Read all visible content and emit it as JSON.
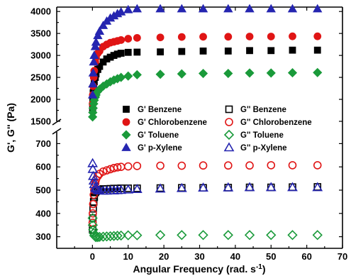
{
  "chart_data": {
    "type": "scatter",
    "xlabel": "Angular Frequency (rad. s",
    "xlabel_superscript": "-1",
    "xlabel_suffix": ")",
    "ylabel": "G', G'' (Pa)",
    "xlim": [
      -10,
      70
    ],
    "x_ticks": [
      "0",
      "10",
      "20",
      "30",
      "40",
      "50",
      "60",
      "70"
    ],
    "y_break": true,
    "upper_panel": {
      "ylim": [
        1500,
        4100
      ],
      "y_ticks": [
        "1500",
        "2000",
        "2500",
        "3000",
        "3500",
        "4000"
      ]
    },
    "lower_panel": {
      "ylim": [
        250,
        750
      ],
      "y_ticks": [
        "300",
        "400",
        "500",
        "600",
        "700"
      ]
    },
    "legend_columns": 2,
    "series": [
      {
        "name": "G' Benzene",
        "color": "#000000",
        "marker": "square",
        "filled": true,
        "panel": "upper",
        "x": [
          0.05,
          0.1,
          0.2,
          0.35,
          0.5,
          0.8,
          1,
          1.5,
          2,
          3,
          4,
          5,
          6,
          7,
          8,
          10,
          12.5,
          19,
          25,
          31,
          38,
          44,
          50,
          56,
          63
        ],
        "y": [
          1800,
          1950,
          2150,
          2300,
          2400,
          2500,
          2580,
          2680,
          2750,
          2850,
          2920,
          2960,
          3000,
          3030,
          3050,
          3070,
          3075,
          3080,
          3090,
          3100,
          3100,
          3110,
          3110,
          3120,
          3120
        ]
      },
      {
        "name": "G' Chlorobenzene",
        "color": "#e01515",
        "marker": "circle",
        "filled": true,
        "panel": "upper",
        "x": [
          0.05,
          0.1,
          0.2,
          0.35,
          0.5,
          0.8,
          1,
          1.5,
          2,
          3,
          4,
          5,
          6,
          7,
          8,
          10,
          12.5,
          19,
          25,
          31,
          38,
          44,
          50,
          56,
          63
        ],
        "y": [
          1900,
          2100,
          2300,
          2500,
          2650,
          2850,
          2950,
          3050,
          3100,
          3200,
          3250,
          3290,
          3310,
          3330,
          3350,
          3380,
          3400,
          3410,
          3420,
          3425,
          3425,
          3430,
          3430,
          3435,
          3435
        ]
      },
      {
        "name": "G' Toluene",
        "color": "#1a9a3a",
        "marker": "diamond",
        "filled": true,
        "panel": "upper",
        "x": [
          0.05,
          0.1,
          0.2,
          0.35,
          0.5,
          0.8,
          1,
          1.5,
          2,
          3,
          4,
          5,
          6,
          7,
          8,
          10,
          12.5,
          19,
          25,
          31,
          38,
          44,
          50,
          56,
          63
        ],
        "y": [
          1600,
          1700,
          1800,
          1900,
          1980,
          2050,
          2100,
          2180,
          2230,
          2300,
          2350,
          2400,
          2440,
          2470,
          2500,
          2530,
          2560,
          2570,
          2580,
          2590,
          2590,
          2600,
          2600,
          2605,
          2610
        ]
      },
      {
        "name": "G' p-Xylene",
        "color": "#2525b0",
        "marker": "triangle",
        "filled": true,
        "panel": "upper",
        "x": [
          0.05,
          0.1,
          0.2,
          0.35,
          0.5,
          0.8,
          1,
          1.5,
          2,
          3,
          4,
          5,
          6,
          7,
          8,
          10,
          12.5,
          19,
          25,
          31,
          38,
          44,
          50,
          56,
          63
        ],
        "y": [
          2100,
          2350,
          2600,
          2850,
          3000,
          3200,
          3300,
          3450,
          3550,
          3680,
          3780,
          3850,
          3900,
          3950,
          3990,
          4040,
          4060,
          4060,
          4060,
          4060,
          4060,
          4060,
          4060,
          4060,
          4060
        ]
      },
      {
        "name": "G'' Benzene",
        "color": "#000000",
        "marker": "square",
        "filled": false,
        "panel": "lower",
        "x": [
          0.05,
          0.1,
          0.2,
          0.35,
          0.5,
          0.8,
          1,
          1.5,
          2,
          3,
          4,
          5,
          6,
          7,
          8,
          10,
          12.5,
          19,
          25,
          31,
          38,
          44,
          50,
          56,
          63
        ],
        "y": [
          330,
          380,
          420,
          450,
          470,
          490,
          495,
          500,
          502,
          505,
          505,
          506,
          507,
          507,
          508,
          508,
          508,
          509,
          510,
          510,
          511,
          512,
          512,
          513,
          514
        ]
      },
      {
        "name": "G'' Chlorobenzene",
        "color": "#e01515",
        "marker": "circle",
        "filled": false,
        "panel": "lower",
        "x": [
          0.05,
          0.1,
          0.2,
          0.35,
          0.5,
          0.8,
          1,
          1.5,
          2,
          3,
          4,
          5,
          6,
          7,
          8,
          10,
          12.5,
          19,
          25,
          31,
          38,
          44,
          50,
          56,
          63
        ],
        "y": [
          360,
          400,
          440,
          480,
          500,
          530,
          545,
          560,
          570,
          580,
          585,
          590,
          595,
          598,
          600,
          602,
          604,
          605,
          605,
          606,
          606,
          606,
          607,
          607,
          607
        ]
      },
      {
        "name": "G'' Toluene",
        "color": "#1a9a3a",
        "marker": "diamond",
        "filled": false,
        "panel": "lower",
        "x": [
          0.05,
          0.1,
          0.2,
          0.35,
          0.5,
          0.8,
          1,
          1.5,
          2,
          3,
          4,
          5,
          6,
          7,
          8,
          10,
          12.5,
          19,
          25,
          31,
          38,
          44,
          50,
          56,
          63
        ],
        "y": [
          380,
          350,
          330,
          315,
          305,
          300,
          298,
          298,
          299,
          300,
          301,
          302,
          303,
          304,
          305,
          306,
          306,
          307,
          307,
          307,
          307,
          307,
          307,
          307,
          307
        ]
      },
      {
        "name": "G'' p-Xylene",
        "color": "#2525b0",
        "marker": "triangle",
        "filled": false,
        "panel": "lower",
        "x": [
          0.05,
          0.1,
          0.2,
          0.35,
          0.5,
          0.8,
          1,
          1.5,
          2,
          3,
          4,
          5,
          6,
          7,
          8,
          10,
          12.5,
          19,
          25,
          31,
          38,
          44,
          50,
          56,
          63
        ],
        "y": [
          615,
          590,
          560,
          540,
          525,
          510,
          505,
          500,
          498,
          497,
          497,
          498,
          498,
          499,
          500,
          502,
          504,
          506,
          508,
          510,
          511,
          512,
          512,
          512,
          512
        ]
      }
    ]
  }
}
